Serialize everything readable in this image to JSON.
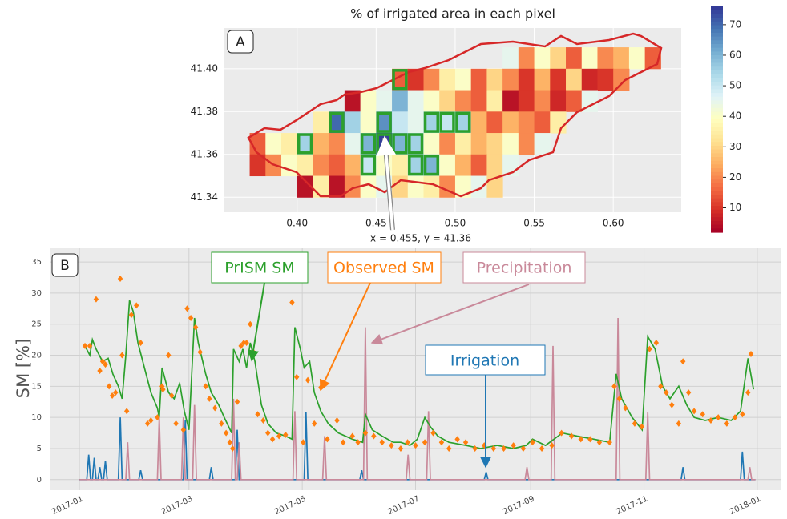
{
  "chart_data": [
    {
      "type": "heatmap",
      "panel_label": "A",
      "title": "% of irrigated area in each pixel",
      "x": [
        0.375,
        0.385,
        0.395,
        0.405,
        0.415,
        0.425,
        0.435,
        0.445,
        0.455,
        0.465,
        0.475,
        0.485,
        0.495,
        0.505,
        0.515,
        0.525,
        0.535,
        0.545,
        0.555,
        0.565,
        0.575,
        0.585,
        0.595,
        0.605,
        0.615,
        0.625
      ],
      "y": [
        41.405,
        41.395,
        41.385,
        41.375,
        41.365,
        41.355,
        41.345
      ],
      "values": [
        [
          null,
          null,
          null,
          null,
          null,
          null,
          null,
          null,
          null,
          null,
          null,
          null,
          null,
          null,
          null,
          null,
          45,
          20,
          40,
          30,
          15,
          40,
          20,
          25,
          40,
          15
        ],
        [
          null,
          null,
          null,
          null,
          null,
          null,
          null,
          null,
          null,
          15,
          10,
          20,
          35,
          40,
          15,
          30,
          20,
          10,
          25,
          10,
          30,
          8,
          10,
          20,
          null,
          null
        ],
        [
          null,
          null,
          null,
          null,
          null,
          null,
          5,
          40,
          45,
          60,
          45,
          40,
          30,
          20,
          15,
          35,
          5,
          10,
          20,
          8,
          15,
          45,
          null,
          null,
          null,
          null
        ],
        [
          null,
          null,
          null,
          null,
          35,
          70,
          55,
          40,
          65,
          50,
          45,
          55,
          50,
          55,
          25,
          15,
          25,
          20,
          15,
          35,
          null,
          null,
          null,
          null,
          null,
          null
        ],
        [
          15,
          40,
          35,
          55,
          25,
          20,
          45,
          60,
          75,
          60,
          55,
          40,
          20,
          35,
          25,
          30,
          40,
          20,
          45,
          null,
          null,
          null,
          null,
          null,
          null,
          null
        ],
        [
          10,
          20,
          40,
          35,
          20,
          15,
          25,
          50,
          40,
          35,
          55,
          60,
          40,
          25,
          15,
          30,
          45,
          null,
          null,
          null,
          null,
          null,
          null,
          null,
          null,
          null
        ],
        [
          null,
          null,
          null,
          5,
          35,
          5,
          20,
          40,
          45,
          30,
          40,
          35,
          20,
          40,
          45,
          30,
          null,
          null,
          null,
          null,
          null,
          null,
          null,
          null,
          null,
          null
        ]
      ],
      "highlighted": [
        {
          "x": 0.465,
          "y": 41.395
        },
        {
          "x": 0.425,
          "y": 41.375
        },
        {
          "x": 0.455,
          "y": 41.375
        },
        {
          "x": 0.485,
          "y": 41.375
        },
        {
          "x": 0.495,
          "y": 41.375
        },
        {
          "x": 0.505,
          "y": 41.375
        },
        {
          "x": 0.405,
          "y": 41.365
        },
        {
          "x": 0.445,
          "y": 41.365
        },
        {
          "x": 0.455,
          "y": 41.365
        },
        {
          "x": 0.465,
          "y": 41.365
        },
        {
          "x": 0.475,
          "y": 41.365
        },
        {
          "x": 0.445,
          "y": 41.355
        },
        {
          "x": 0.475,
          "y": 41.355
        },
        {
          "x": 0.485,
          "y": 41.355
        }
      ],
      "highlight_color": "#2ca02c",
      "colormap": "RdYlBu",
      "clim": [
        2,
        76
      ],
      "colorbar_ticks": [
        10,
        20,
        30,
        40,
        50,
        60,
        70
      ],
      "xlim": [
        0.354,
        0.643
      ],
      "xticks": [
        {
          "value": 0.4,
          "label": "0.40"
        },
        0.45,
        {
          "value": 0.5,
          "label": "0.50"
        },
        0.55,
        {
          "value": 0.6,
          "label": "0.60"
        }
      ],
      "ylim": [
        41.333,
        41.419
      ],
      "yticks": [
        41.34,
        41.36,
        41.38,
        {
          "value": 41.4,
          "label": "41.40"
        }
      ],
      "grid": true,
      "annotation": "x = 0.455, y = 41.36"
    },
    {
      "type": "line",
      "panel_label": "B",
      "y_label": "SM  [%]",
      "xlim": [
        -16,
        378
      ],
      "xticks": [
        {
          "value": 0,
          "label": "2017-01"
        },
        {
          "value": 59,
          "label": "2017-03"
        },
        {
          "value": 120,
          "label": "2017-05"
        },
        {
          "value": 181,
          "label": "2017-07"
        },
        {
          "value": 243,
          "label": "2017-09"
        },
        {
          "value": 304,
          "label": "2017-11"
        },
        {
          "value": 365,
          "label": "2018-01"
        }
      ],
      "ylim": [
        -1.7,
        37.2
      ],
      "yticks": [
        0,
        5,
        10,
        15,
        20,
        25,
        30,
        35
      ],
      "grid": true,
      "series": [
        {
          "name": "Irrigation",
          "color": "#1f77b4",
          "style": "line",
          "x": [
            0,
            4,
            5,
            6,
            7,
            8,
            9,
            10,
            11,
            12,
            13,
            14,
            15,
            21,
            22,
            23,
            32,
            33,
            34,
            56,
            57,
            58,
            70,
            71,
            72,
            84,
            85,
            86,
            121,
            122,
            123,
            151,
            152,
            153,
            218,
            219,
            220,
            324,
            325,
            326,
            356,
            357,
            358,
            364
          ],
          "values": [
            0,
            0,
            4,
            0,
            0,
            3.5,
            0,
            0,
            2,
            0,
            0,
            3,
            0,
            0,
            10,
            0,
            0,
            1.5,
            0,
            0,
            9.5,
            0,
            0,
            2,
            0,
            0,
            8,
            0,
            0,
            10.8,
            0,
            0,
            1.5,
            0,
            0,
            1.2,
            0,
            0,
            2,
            0,
            0,
            4.5,
            0,
            0
          ]
        },
        {
          "name": "Precipitation",
          "color": "#c9899a",
          "style": "line",
          "x": [
            0,
            25,
            26,
            27,
            42,
            43,
            44,
            55,
            56,
            57,
            61,
            62,
            63,
            82,
            83,
            84,
            85,
            86,
            87,
            115,
            116,
            117,
            131,
            132,
            133,
            153,
            154,
            155,
            176,
            177,
            178,
            187,
            188,
            189,
            240,
            241,
            242,
            254,
            255,
            256,
            289,
            290,
            291,
            305,
            306,
            307,
            360,
            361,
            362,
            364
          ],
          "values": [
            0,
            0,
            6,
            0,
            0,
            10,
            0,
            0,
            10,
            0,
            0,
            12,
            0,
            0,
            13,
            0,
            0,
            6,
            0,
            0,
            11,
            0,
            0,
            7,
            0,
            0,
            24.5,
            0,
            0,
            4,
            0,
            0,
            11,
            0,
            0,
            2,
            0,
            0,
            21.5,
            0,
            0,
            26,
            0,
            0,
            10.8,
            0,
            0,
            2,
            0,
            0
          ]
        },
        {
          "name": "PrISM SM",
          "color": "#2ca02c",
          "style": "line",
          "x": [
            3,
            5.6,
            7,
            9,
            12.5,
            15.5,
            18,
            21,
            23,
            25,
            27,
            29,
            31.5,
            35,
            38.5,
            42,
            43,
            44.5,
            48,
            51,
            54,
            56.5,
            59,
            62,
            64,
            68,
            71,
            75,
            78,
            82,
            83,
            86,
            88,
            90,
            92,
            94.5,
            98,
            101.5,
            106,
            111,
            114.5,
            116,
            119,
            121,
            124,
            126.5,
            130,
            134,
            139.5,
            147,
            152.5,
            154,
            157.7,
            163,
            169,
            173,
            178,
            182,
            186,
            189,
            193,
            199,
            208,
            216,
            225,
            233.7,
            240.6,
            244,
            251,
            260,
            268,
            277,
            285.5,
            289,
            292,
            297.6,
            303,
            306,
            310,
            314,
            318,
            322.7,
            327,
            331,
            337,
            344,
            351,
            356,
            360,
            363
          ],
          "values": [
            21.5,
            20,
            22.5,
            21,
            19,
            19.5,
            17,
            15,
            13,
            20,
            28.8,
            27,
            22,
            18,
            14,
            11.5,
            10,
            18,
            14,
            13,
            15.5,
            11,
            8,
            26,
            22,
            17,
            14,
            12,
            10,
            7.5,
            21,
            19,
            21,
            18,
            22,
            19,
            12,
            9,
            7.5,
            7,
            6.5,
            24.5,
            21,
            18,
            19,
            14,
            11,
            9,
            7.5,
            6.5,
            6,
            10.5,
            8,
            7,
            6,
            6,
            5.5,
            6.5,
            10,
            8.5,
            7,
            6,
            5.5,
            5,
            5.5,
            5,
            5.5,
            6.5,
            5.5,
            7.5,
            7,
            6.5,
            6,
            17,
            13,
            10,
            8,
            23,
            21,
            15,
            13,
            15,
            12,
            10,
            9.5,
            10,
            9.5,
            11,
            19.5,
            14.5
          ]
        },
        {
          "name": "Observed SM",
          "color": "#ff7f0e",
          "style": "markers",
          "x": [
            3,
            5.6,
            9,
            11,
            12.5,
            14,
            16,
            17.7,
            19.5,
            22,
            23,
            25.5,
            28,
            30.7,
            33,
            36.7,
            38.5,
            42,
            44.5,
            45,
            48,
            49.7,
            52,
            56,
            58,
            60,
            62.6,
            65,
            68,
            70,
            73,
            76.5,
            79,
            81,
            82.5,
            85,
            87,
            88.5,
            90,
            92,
            93.7,
            96,
            99,
            101.5,
            104,
            107.5,
            111,
            114.5,
            117,
            120.5,
            123,
            126.5,
            130,
            133.5,
            138.7,
            142,
            147,
            150,
            154,
            158.5,
            163,
            168,
            173,
            176.7,
            181,
            186,
            190.5,
            195,
            199,
            203.5,
            208,
            213,
            218,
            223,
            228.5,
            233.7,
            239,
            244,
            249,
            254.4,
            259.6,
            265,
            270,
            275,
            280,
            285.5,
            288,
            290.7,
            294,
            299,
            302.8,
            307,
            310.6,
            313,
            316,
            319,
            322.7,
            325,
            328,
            331,
            335.6,
            340,
            344,
            348.6,
            353,
            357,
            360,
            361.6
          ],
          "values": [
            21.5,
            21.5,
            29,
            17.5,
            19,
            18.5,
            15,
            13.5,
            14,
            32.3,
            20,
            11,
            26.5,
            28,
            22,
            9,
            9.5,
            10,
            15,
            14.5,
            20,
            13.5,
            9,
            8,
            27.5,
            26,
            24.5,
            20.5,
            15,
            13,
            11.5,
            9,
            7.5,
            6,
            5,
            12.5,
            21.5,
            22,
            22,
            25,
            20.5,
            10.5,
            9.5,
            7.5,
            6.5,
            7,
            7.2,
            28.5,
            16.5,
            6,
            16,
            9,
            14.8,
            6.5,
            9.5,
            6,
            7,
            6,
            7.5,
            7,
            6,
            5.5,
            5,
            6,
            5.5,
            6,
            7.5,
            6,
            5,
            6.5,
            6,
            5,
            5.5,
            5,
            5,
            5.5,
            5,
            6,
            5,
            5.5,
            7.5,
            7,
            6.5,
            6.5,
            6,
            6,
            15,
            13,
            11.5,
            9,
            8.5,
            21,
            22,
            15,
            14,
            12,
            9,
            19,
            14,
            11,
            10.5,
            9.5,
            10,
            9,
            10,
            10.5,
            14,
            20.2
          ]
        }
      ]
    }
  ]
}
